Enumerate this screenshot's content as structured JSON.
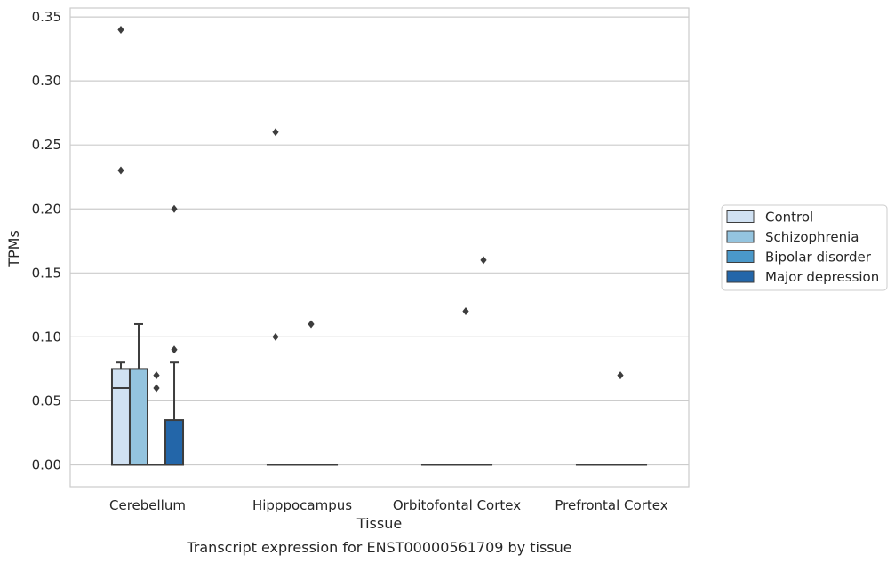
{
  "chart_data": {
    "type": "boxplot",
    "title": "Transcript expression for ENST00000561709 by tissue",
    "xlabel": "Tissue",
    "ylabel": "TPMs",
    "ylim": [
      -0.017,
      0.357
    ],
    "yticks": [
      "0.00",
      "0.05",
      "0.10",
      "0.15",
      "0.20",
      "0.25",
      "0.30",
      "0.35"
    ],
    "categories": [
      "Cerebellum",
      "Hipppocampus",
      "Orbitofontal Cortex",
      "Prefrontal Cortex"
    ],
    "grid": true,
    "legend": {
      "placement": "right",
      "entries": [
        "Control",
        "Schizophrenia",
        "Bipolar disorder",
        "Major depression"
      ]
    },
    "colors": {
      "Control": "#d0e1f2",
      "Schizophrenia": "#94c4df",
      "Bipolar disorder": "#4a98c9",
      "Major depression": "#2366a9",
      "edge": "#3d3d3d",
      "grid": "#cccccc"
    },
    "series": [
      {
        "name": "Control",
        "boxes": [
          {
            "q1": 0,
            "median": 0.06,
            "q3": 0.075,
            "whisker_low": 0,
            "whisker_high": 0.08,
            "outliers": [
              0.23,
              0.34
            ]
          },
          {
            "q1": 0,
            "median": 0,
            "q3": 0,
            "whisker_low": 0,
            "whisker_high": 0,
            "outliers": [
              0.1,
              0.26
            ]
          },
          {
            "q1": 0,
            "median": 0,
            "q3": 0,
            "whisker_low": 0,
            "whisker_high": 0,
            "outliers": []
          },
          {
            "q1": 0,
            "median": 0,
            "q3": 0,
            "whisker_low": 0,
            "whisker_high": 0,
            "outliers": []
          }
        ]
      },
      {
        "name": "Schizophrenia",
        "boxes": [
          {
            "q1": 0,
            "median": 0,
            "q3": 0.075,
            "whisker_low": 0,
            "whisker_high": 0.11,
            "outliers": []
          },
          {
            "q1": 0,
            "median": 0,
            "q3": 0,
            "whisker_low": 0,
            "whisker_high": 0,
            "outliers": []
          },
          {
            "q1": 0,
            "median": 0,
            "q3": 0,
            "whisker_low": 0,
            "whisker_high": 0,
            "outliers": []
          },
          {
            "q1": 0,
            "median": 0,
            "q3": 0,
            "whisker_low": 0,
            "whisker_high": 0,
            "outliers": []
          }
        ]
      },
      {
        "name": "Bipolar disorder",
        "boxes": [
          {
            "q1": 0,
            "median": 0,
            "q3": 0,
            "whisker_low": 0,
            "whisker_high": 0,
            "outliers": [
              0.06,
              0.07
            ]
          },
          {
            "q1": 0,
            "median": 0,
            "q3": 0,
            "whisker_low": 0,
            "whisker_high": 0,
            "outliers": [
              0.11
            ]
          },
          {
            "q1": 0,
            "median": 0,
            "q3": 0,
            "whisker_low": 0,
            "whisker_high": 0,
            "outliers": [
              0.12
            ]
          },
          {
            "q1": 0,
            "median": 0,
            "q3": 0,
            "whisker_low": 0,
            "whisker_high": 0,
            "outliers": [
              0.07
            ]
          }
        ]
      },
      {
        "name": "Major depression",
        "boxes": [
          {
            "q1": 0,
            "median": 0,
            "q3": 0.035,
            "whisker_low": 0,
            "whisker_high": 0.08,
            "outliers": [
              0.09,
              0.2
            ]
          },
          {
            "q1": 0,
            "median": 0,
            "q3": 0,
            "whisker_low": 0,
            "whisker_high": 0,
            "outliers": []
          },
          {
            "q1": 0,
            "median": 0,
            "q3": 0,
            "whisker_low": 0,
            "whisker_high": 0,
            "outliers": [
              0.16
            ]
          },
          {
            "q1": 0,
            "median": 0,
            "q3": 0,
            "whisker_low": 0,
            "whisker_high": 0,
            "outliers": []
          }
        ]
      }
    ]
  }
}
